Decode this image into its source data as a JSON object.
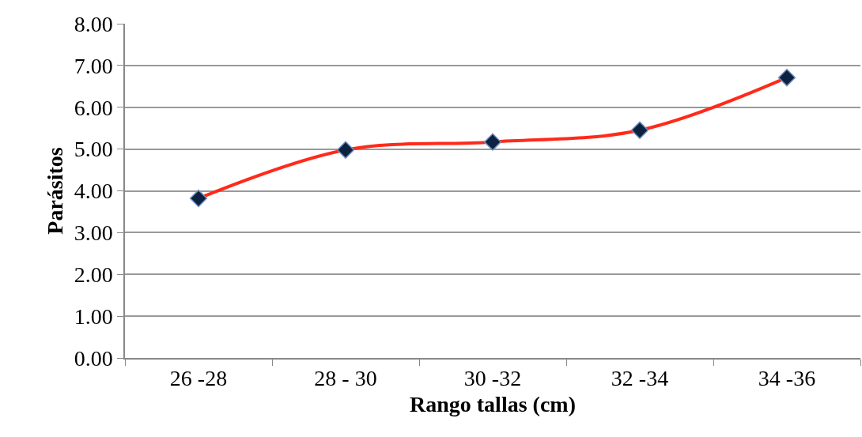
{
  "chart_data": {
    "type": "line",
    "xlabel": "Rango tallas (cm)",
    "ylabel": "Parásitos",
    "categories": [
      "26 -28",
      "28 - 30",
      "30 -32",
      "32 -34",
      "34 -36"
    ],
    "series": [
      {
        "color": "#ff2a1a",
        "values": [
          3.82,
          4.98,
          5.17,
          5.45,
          6.71
        ]
      }
    ],
    "ylim": [
      0,
      8
    ],
    "yticks": [
      {
        "value": 0,
        "label": "0.00"
      },
      {
        "value": 1,
        "label": "1.00"
      },
      {
        "value": 2,
        "label": "2.00"
      },
      {
        "value": 3,
        "label": "3.00"
      },
      {
        "value": 4,
        "label": "4.00"
      },
      {
        "value": 5,
        "label": "5.00"
      },
      {
        "value": 6,
        "label": "6.00"
      },
      {
        "value": 7,
        "label": "7.00"
      },
      {
        "value": 8,
        "label": "8.00"
      }
    ],
    "grid": "y",
    "marker": "diamond",
    "line_style": "solid"
  }
}
